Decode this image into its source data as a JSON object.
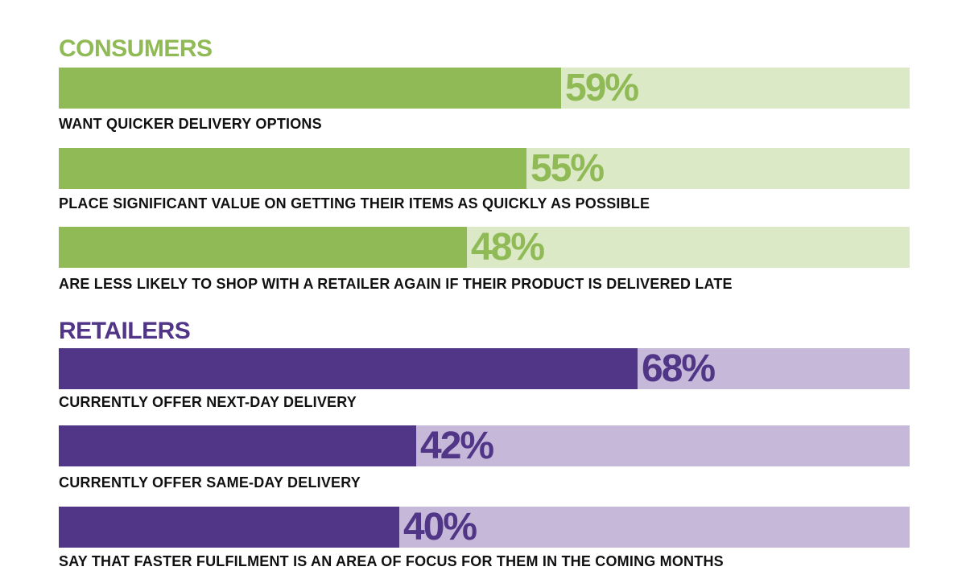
{
  "colors": {
    "consumers_dark": "#8fba55",
    "consumers_light": "#dce9c6",
    "retailers_dark": "#513586",
    "retailers_light": "#c6b8d9"
  },
  "chart_data": {
    "type": "bar",
    "groups": [
      {
        "title": "CONSUMERS",
        "color_key": "consumers",
        "items": [
          {
            "label": "WANT QUICKER DELIVERY OPTIONS",
            "value": 59,
            "display": "59%"
          },
          {
            "label": "PLACE SIGNIFICANT VALUE ON GETTING THEIR ITEMS AS QUICKLY AS POSSIBLE",
            "value": 55,
            "display": "55%"
          },
          {
            "label": "ARE LESS LIKELY TO SHOP WITH A RETAILER AGAIN IF THEIR PRODUCT IS DELIVERED LATE",
            "value": 48,
            "display": "48%"
          }
        ]
      },
      {
        "title": "RETAILERS",
        "color_key": "retailers",
        "items": [
          {
            "label": "CURRENTLY OFFER NEXT-DAY DELIVERY",
            "value": 68,
            "display": "68%"
          },
          {
            "label": "CURRENTLY OFFER SAME-DAY DELIVERY",
            "value": 42,
            "display": "42%"
          },
          {
            "label": "SAY THAT FASTER FULFILMENT IS AN AREA OF FOCUS FOR THEM IN THE COMING MONTHS",
            "value": 40,
            "display": "40%"
          }
        ]
      }
    ],
    "xlim": [
      0,
      100
    ]
  }
}
